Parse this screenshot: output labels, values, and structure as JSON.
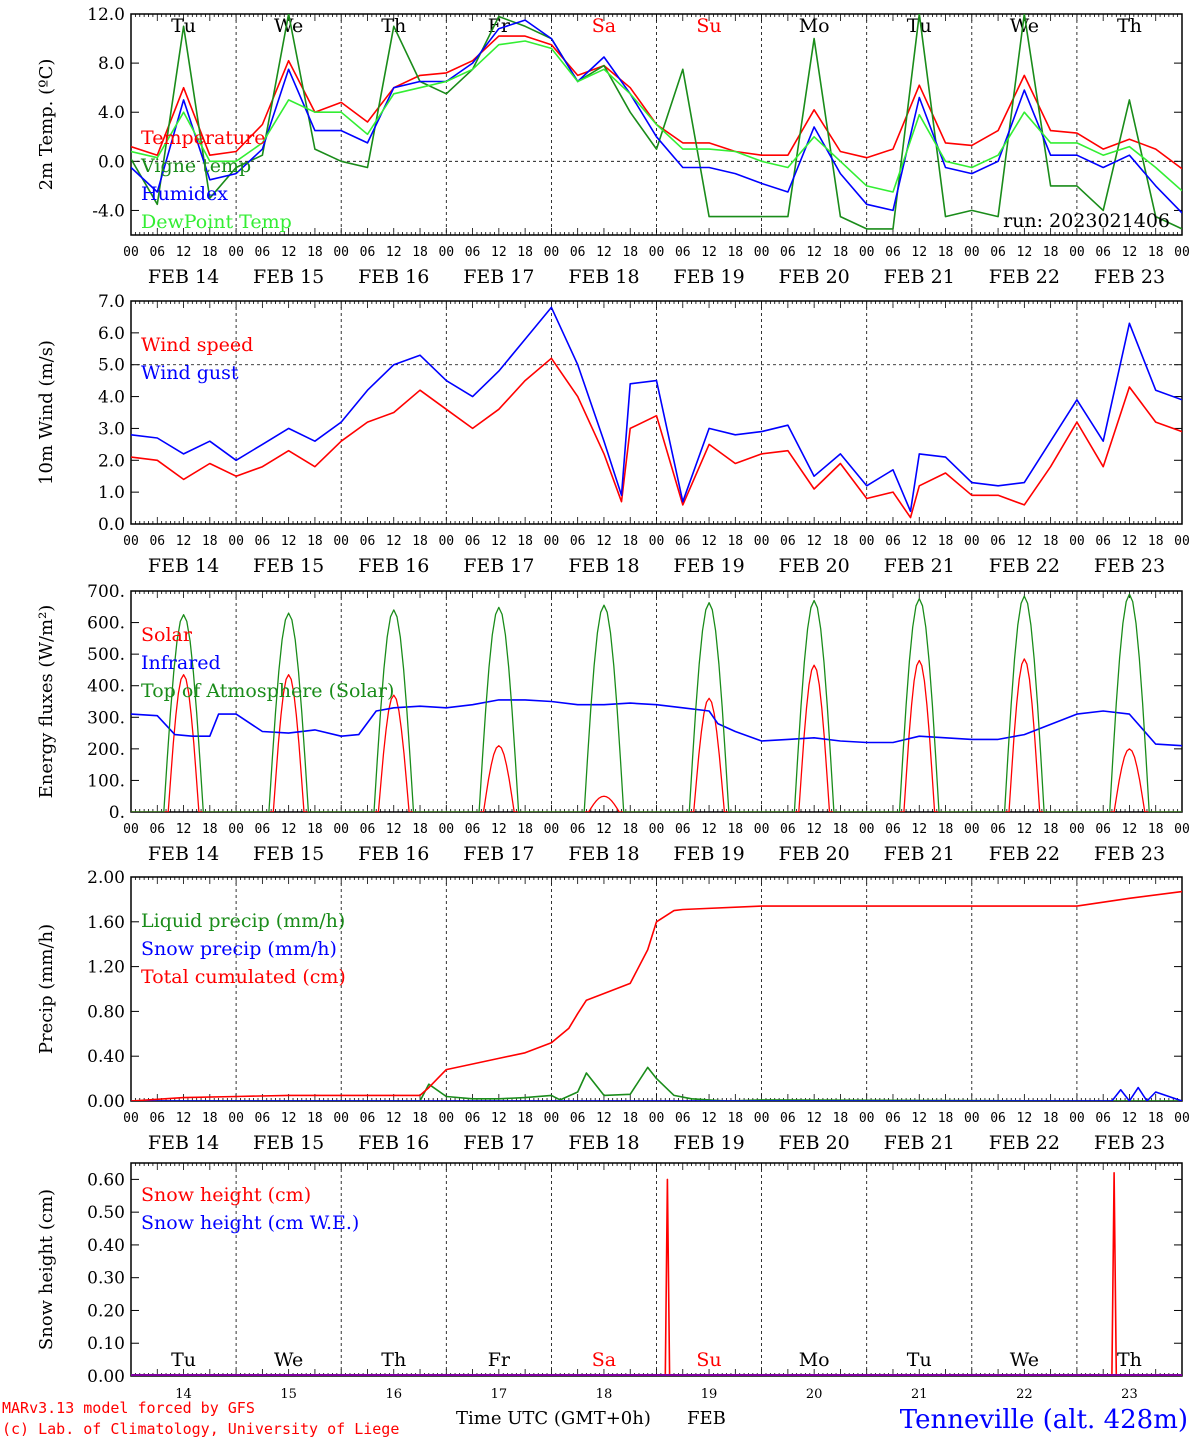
{
  "days": [
    "Tu",
    "We",
    "Th",
    "Fr",
    "Sa",
    "Su",
    "Mo",
    "Tu",
    "We",
    "Th"
  ],
  "weekend_days": [
    "Sa",
    "Su"
  ],
  "day_dates": [
    "FEB 14",
    "FEB 15",
    "FEB 16",
    "FEB 17",
    "FEB 18",
    "FEB 19",
    "FEB 20",
    "FEB 21",
    "FEB 22",
    "FEB 23"
  ],
  "hour_ticks": [
    "00",
    "06",
    "12",
    "18"
  ],
  "hour_end_tick": "00",
  "day_numbers": [
    "14",
    "15",
    "16",
    "17",
    "18",
    "19",
    "20",
    "21",
    "22",
    "23"
  ],
  "colors": {
    "red": "#ff0000",
    "green": "#1a8c1a",
    "blue": "#0000ff",
    "lightgreen": "#33ee33",
    "weekend": "#ff0000",
    "purple": "#8000a0"
  },
  "footer": {
    "credit_line1": "MARv3.13 model forced by GFS",
    "credit_line2": "(c) Lab. of Climatology, University of Liege",
    "xlabel": "Time UTC (GMT+0h)",
    "month": "FEB",
    "station": "Tenneville (alt. 428m)"
  },
  "chart_data": [
    {
      "type": "line",
      "ylabel": "2m Temp. (ºC)",
      "ylim": [
        -6.0,
        12.0
      ],
      "yticks": [
        "12.0",
        "8.0",
        "4.0",
        "0.0",
        "-4.0"
      ],
      "ytick_values": [
        12,
        8,
        4,
        0,
        -4
      ],
      "dashed_y": 0,
      "annotation": "run: 2023021406",
      "show_days": true,
      "x_unit": "hours since FEB 14 00 UTC",
      "series": [
        {
          "name": "Temperature",
          "color": "#ff0000",
          "x": [
            0,
            6,
            12,
            18,
            24,
            30,
            36,
            42,
            48,
            54,
            60,
            66,
            72,
            78,
            84,
            90,
            96,
            102,
            108,
            114,
            120,
            126,
            132,
            138,
            144,
            150,
            156,
            162,
            168,
            174,
            180,
            186,
            192,
            198,
            204,
            210,
            216,
            222,
            228,
            234,
            240
          ],
          "values": [
            1.2,
            0.5,
            6,
            0.5,
            0.8,
            3,
            8.2,
            4,
            4.8,
            3.2,
            6,
            7,
            7.2,
            8.2,
            10.2,
            10.2,
            9.5,
            7,
            7.8,
            6,
            3,
            1.5,
            1.5,
            0.8,
            0.5,
            0.5,
            4.2,
            0.8,
            0.3,
            1,
            6.2,
            1.5,
            1.3,
            2.5,
            7,
            2.5,
            2.3,
            1,
            1.8,
            1,
            -0.6
          ]
        },
        {
          "name": "Vigne temp",
          "color": "#1a8c1a",
          "x": [
            0,
            6,
            12,
            18,
            24,
            30,
            36,
            42,
            48,
            54,
            60,
            66,
            72,
            78,
            84,
            90,
            96,
            102,
            108,
            114,
            120,
            126,
            132,
            138,
            144,
            150,
            156,
            162,
            168,
            174,
            180,
            186,
            192,
            198,
            204,
            210,
            216,
            222,
            228,
            234,
            240
          ],
          "values": [
            0.2,
            -3.5,
            11,
            -3,
            -0.5,
            0.5,
            12,
            1,
            0,
            -0.5,
            11,
            6.5,
            5.5,
            7.5,
            11.8,
            11,
            10,
            6.5,
            7.8,
            4,
            1,
            7.5,
            -4.5,
            -4.5,
            -4.5,
            -4.5,
            10,
            -4.5,
            -5.5,
            -5.5,
            12,
            -4.5,
            -4,
            -4.5,
            12,
            -2,
            -2,
            -4,
            5,
            -4.5,
            -5.5
          ]
        },
        {
          "name": "Humidex",
          "color": "#0000ff",
          "x": [
            0,
            6,
            12,
            18,
            24,
            30,
            36,
            42,
            48,
            54,
            60,
            66,
            72,
            78,
            84,
            90,
            96,
            102,
            108,
            114,
            120,
            126,
            132,
            138,
            144,
            150,
            156,
            162,
            168,
            174,
            180,
            186,
            192,
            198,
            204,
            210,
            216,
            222,
            228,
            234,
            240
          ],
          "values": [
            -0.5,
            -2.5,
            5,
            -1.5,
            -1,
            1,
            7.5,
            2.5,
            2.5,
            1.5,
            6,
            6.5,
            6.5,
            8,
            10.8,
            11.5,
            10,
            6.5,
            8.5,
            5.5,
            2,
            -0.5,
            -0.5,
            -1,
            -1.8,
            -2.5,
            2.8,
            -1,
            -3.5,
            -4,
            5.2,
            -0.5,
            -1,
            0,
            5.8,
            0.5,
            0.5,
            -0.5,
            0.5,
            -2,
            -4.2
          ]
        },
        {
          "name": "DewPoint Temp",
          "color": "#33ee33",
          "x": [
            0,
            6,
            12,
            18,
            24,
            30,
            36,
            42,
            48,
            54,
            60,
            66,
            72,
            78,
            84,
            90,
            96,
            102,
            108,
            114,
            120,
            126,
            132,
            138,
            144,
            150,
            156,
            162,
            168,
            174,
            180,
            186,
            192,
            198,
            204,
            210,
            216,
            222,
            228,
            234,
            240
          ],
          "values": [
            0.8,
            0.3,
            4,
            0,
            0,
            1.5,
            5,
            4,
            4,
            2.2,
            5.5,
            6,
            6.5,
            7.5,
            9.5,
            9.8,
            9.2,
            6.5,
            7.5,
            5.5,
            3,
            1,
            1,
            0.8,
            0,
            -0.5,
            2,
            0,
            -2,
            -2.5,
            3.8,
            0,
            -0.5,
            0.5,
            4,
            1.5,
            1.5,
            0.5,
            1.2,
            -0.5,
            -2.4
          ]
        }
      ]
    },
    {
      "type": "line",
      "ylabel": "10m Wind (m/s)",
      "ylim": [
        0.0,
        7.0
      ],
      "yticks": [
        "7.0",
        "6.0",
        "5.0",
        "4.0",
        "3.0",
        "2.0",
        "1.0",
        "0.0"
      ],
      "ytick_values": [
        7,
        6,
        5,
        4,
        3,
        2,
        1,
        0
      ],
      "dashed_y": 5,
      "show_days": false,
      "x_unit": "hours since FEB 14 00 UTC",
      "series": [
        {
          "name": "Wind speed",
          "color": "#ff0000",
          "x": [
            0,
            6,
            12,
            18,
            24,
            30,
            36,
            42,
            48,
            54,
            60,
            66,
            72,
            78,
            84,
            90,
            96,
            102,
            108,
            112,
            114,
            120,
            126,
            132,
            138,
            144,
            150,
            156,
            162,
            168,
            174,
            178,
            180,
            186,
            192,
            198,
            204,
            210,
            216,
            222,
            228,
            234,
            240
          ],
          "values": [
            2.1,
            2,
            1.4,
            1.9,
            1.5,
            1.8,
            2.3,
            1.8,
            2.6,
            3.2,
            3.5,
            4.2,
            3.6,
            3,
            3.6,
            4.5,
            5.2,
            4,
            2.2,
            0.7,
            3,
            3.4,
            0.6,
            2.5,
            1.9,
            2.2,
            2.3,
            1.1,
            1.9,
            0.8,
            1,
            0.2,
            1.2,
            1.6,
            0.9,
            0.9,
            0.6,
            1.8,
            3.2,
            1.8,
            4.3,
            3.2,
            2.9
          ]
        },
        {
          "name": "Wind gust",
          "color": "#0000ff",
          "x": [
            0,
            6,
            12,
            18,
            24,
            30,
            36,
            42,
            48,
            54,
            60,
            66,
            72,
            78,
            84,
            90,
            96,
            102,
            108,
            112,
            114,
            120,
            126,
            132,
            138,
            144,
            150,
            156,
            162,
            168,
            174,
            178,
            180,
            186,
            192,
            198,
            204,
            210,
            216,
            222,
            228,
            234,
            240
          ],
          "values": [
            2.8,
            2.7,
            2.2,
            2.6,
            2,
            2.5,
            3,
            2.6,
            3.2,
            4.2,
            5,
            5.3,
            4.5,
            4,
            4.8,
            5.8,
            6.8,
            5,
            2.6,
            0.9,
            4.4,
            4.5,
            0.7,
            3,
            2.8,
            2.9,
            3.1,
            1.5,
            2.2,
            1.2,
            1.7,
            0.4,
            2.2,
            2.1,
            1.3,
            1.2,
            1.3,
            2.6,
            3.9,
            2.6,
            6.3,
            4.2,
            3.9
          ]
        }
      ]
    },
    {
      "type": "line",
      "ylabel": "Energy fluxes (W/m²)",
      "ylim": [
        0,
        700
      ],
      "yticks": [
        "700.",
        "600.",
        "500.",
        "400.",
        "300.",
        "200.",
        "100.",
        "0."
      ],
      "ytick_values": [
        700,
        600,
        500,
        400,
        300,
        200,
        100,
        0
      ],
      "show_days": false,
      "x_unit": "hours since FEB 14 00 UTC",
      "series": [
        {
          "name": "Solar",
          "color": "#ff0000",
          "daily_peak": [
            435,
            435,
            370,
            210,
            50,
            360,
            465,
            480,
            485,
            200
          ]
        },
        {
          "name": "Infrared",
          "color": "#0000ff",
          "x": [
            0,
            6,
            10,
            14,
            18,
            20,
            24,
            30,
            36,
            42,
            48,
            52,
            56,
            60,
            66,
            72,
            78,
            84,
            90,
            96,
            102,
            108,
            114,
            120,
            126,
            132,
            134,
            138,
            144,
            150,
            156,
            162,
            168,
            174,
            180,
            186,
            192,
            198,
            204,
            216,
            222,
            228,
            234,
            240
          ],
          "values": [
            310,
            305,
            245,
            240,
            240,
            310,
            310,
            255,
            250,
            260,
            240,
            245,
            320,
            330,
            335,
            330,
            340,
            355,
            355,
            350,
            340,
            340,
            345,
            340,
            330,
            320,
            280,
            255,
            225,
            230,
            235,
            225,
            220,
            220,
            240,
            235,
            230,
            230,
            245,
            310,
            320,
            310,
            215,
            210
          ]
        },
        {
          "name": "Top of Atmosphere (Solar)",
          "color": "#1a8c1a",
          "daily_peak": [
            625,
            630,
            640,
            648,
            655,
            663,
            670,
            676,
            684,
            690
          ]
        }
      ]
    },
    {
      "type": "line",
      "ylabel": "Precip (mm/h)",
      "ylim": [
        0.0,
        2.0
      ],
      "yticks": [
        "2.00",
        "1.60",
        "1.20",
        "0.80",
        "0.40",
        "0.00"
      ],
      "ytick_values": [
        2.0,
        1.6,
        1.2,
        0.8,
        0.4,
        0.0
      ],
      "show_days": false,
      "x_unit": "hours since FEB 14 00 UTC",
      "series": [
        {
          "name": "Liquid precip (mm/h)",
          "color": "#1a8c1a",
          "x": [
            0,
            60,
            66,
            68,
            72,
            78,
            84,
            90,
            96,
            98,
            102,
            104,
            108,
            114,
            118,
            120,
            124,
            128,
            132,
            136,
            144,
            216,
            228,
            240
          ],
          "values": [
            0,
            0,
            0,
            0.15,
            0.04,
            0.02,
            0.02,
            0.03,
            0.05,
            0.01,
            0.08,
            0.25,
            0.05,
            0.06,
            0.3,
            0.2,
            0.05,
            0.02,
            0.01,
            0,
            0.01,
            0,
            0,
            0
          ]
        },
        {
          "name": "Snow precip (mm/h)",
          "color": "#0000ff",
          "x": [
            0,
            224,
            226,
            228,
            230,
            232,
            234,
            240
          ],
          "values": [
            0,
            0,
            0.1,
            0,
            0.12,
            0,
            0.08,
            0
          ]
        },
        {
          "name": "Total cumulated (cm)",
          "color": "#ff0000",
          "x": [
            0,
            12,
            24,
            36,
            48,
            60,
            66,
            68,
            72,
            78,
            84,
            90,
            96,
            100,
            102,
            104,
            108,
            114,
            118,
            120,
            124,
            126,
            144,
            168,
            192,
            216,
            228,
            240
          ],
          "values": [
            0,
            0.03,
            0.04,
            0.05,
            0.05,
            0.05,
            0.05,
            0.12,
            0.28,
            0.33,
            0.38,
            0.43,
            0.52,
            0.65,
            0.78,
            0.9,
            0.96,
            1.05,
            1.35,
            1.6,
            1.7,
            1.71,
            1.74,
            1.74,
            1.74,
            1.74,
            1.81,
            1.87
          ]
        }
      ]
    },
    {
      "type": "line",
      "ylabel": "Snow height (cm)",
      "ylim": [
        0.0,
        0.65
      ],
      "yticks": [
        "0.60",
        "0.50",
        "0.40",
        "0.30",
        "0.20",
        "0.10",
        "0.00"
      ],
      "ytick_values": [
        0.6,
        0.5,
        0.4,
        0.3,
        0.2,
        0.1,
        0.0
      ],
      "show_days": true,
      "days_position": "bottom",
      "x_unit": "hours since FEB 14 00 UTC",
      "series": [
        {
          "name": "Snow height (cm)",
          "color": "#ff0000",
          "x": [
            0,
            122,
            122.5,
            123,
            240
          ],
          "values": [
            0,
            0,
            0.6,
            0,
            0
          ]
        },
        {
          "name": "Snow height (cm W.E.)",
          "color": "#0000ff",
          "x": [
            0,
            240
          ],
          "values": [
            0,
            0
          ]
        }
      ],
      "spike2": {
        "x": [
          0,
          224,
          224.5,
          225,
          240
        ],
        "values": [
          0,
          0,
          0.62,
          0,
          0
        ]
      }
    }
  ]
}
